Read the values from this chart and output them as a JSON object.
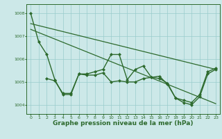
{
  "line_steep": {
    "x": [
      0,
      1,
      2,
      3,
      4,
      5,
      6,
      7,
      8,
      9,
      10,
      11,
      12,
      13,
      14,
      15,
      16,
      17,
      18,
      19,
      20,
      21,
      22,
      23
    ],
    "y": [
      1008.0,
      1006.75,
      1006.2,
      1005.1,
      1004.45,
      1004.45,
      1005.35,
      1005.35,
      1005.45,
      1005.55,
      1006.2,
      1006.2,
      1005.1,
      1005.55,
      1005.7,
      1005.2,
      1005.25,
      1004.9,
      1004.3,
      1004.2,
      1004.1,
      1004.45,
      1005.45,
      1005.6
    ],
    "color": "#2d6a2d",
    "linewidth": 1.0,
    "marker": "D",
    "markersize": 2.0
  },
  "line_flat": {
    "x": [
      2,
      3,
      4,
      5,
      6,
      7,
      8,
      9,
      10,
      11,
      12,
      13,
      14,
      15,
      16,
      17,
      18,
      19,
      20,
      21,
      22,
      23
    ],
    "y": [
      1005.15,
      1005.05,
      1004.5,
      1004.5,
      1005.35,
      1005.3,
      1005.3,
      1005.4,
      1005.0,
      1005.05,
      1005.0,
      1005.0,
      1005.15,
      1005.2,
      1005.15,
      1004.95,
      1004.3,
      1004.1,
      1004.0,
      1004.35,
      1005.35,
      1005.55
    ],
    "color": "#2d6a2d",
    "linewidth": 1.0,
    "marker": "D",
    "markersize": 2.0
  },
  "trend1": {
    "x": [
      0,
      23
    ],
    "y": [
      1007.55,
      1005.55
    ],
    "color": "#2d6a2d",
    "linewidth": 0.9
  },
  "trend2": {
    "x": [
      0,
      23
    ],
    "y": [
      1007.3,
      1004.05
    ],
    "color": "#2d6a2d",
    "linewidth": 0.9
  },
  "background_color": "#cce8e8",
  "grid_color": "#99cccc",
  "axis_color": "#2d6a2d",
  "xlabel": "Graphe pression niveau de la mer (hPa)",
  "xlabel_fontsize": 6.5,
  "ylim": [
    1003.6,
    1008.4
  ],
  "xlim": [
    -0.5,
    23.5
  ],
  "yticks": [
    1004,
    1005,
    1006,
    1007,
    1008
  ],
  "xticks": [
    0,
    1,
    2,
    3,
    4,
    5,
    6,
    7,
    8,
    9,
    10,
    11,
    12,
    13,
    14,
    15,
    16,
    17,
    18,
    19,
    20,
    21,
    22,
    23
  ],
  "tick_fontsize": 4.5
}
